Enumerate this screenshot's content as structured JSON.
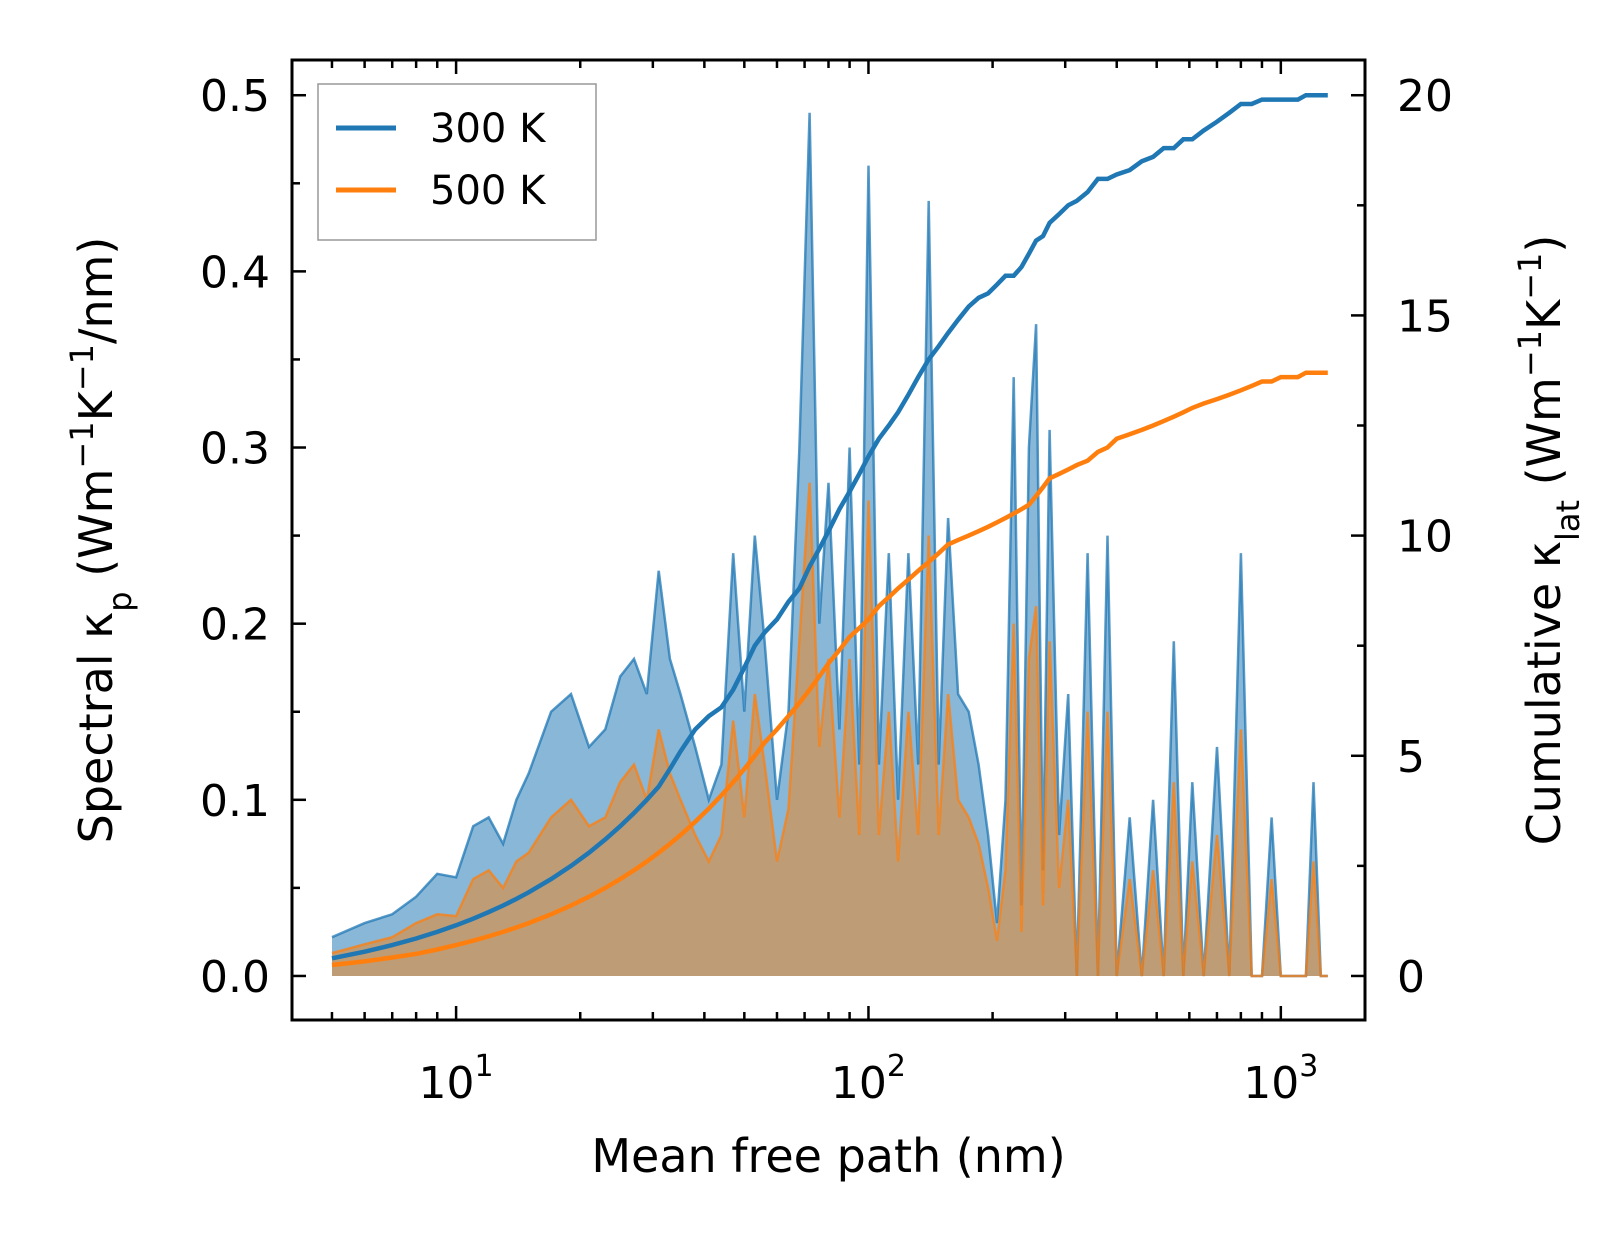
{
  "chart_data": {
    "type": "line",
    "title": "",
    "xlabel": "Mean free path (nm)",
    "ylabel_left": "Spectral κp (Wm−1K−1/nm)",
    "ylabel_right": "Cumulative κlat (Wm−1K−1)",
    "xscale": "log",
    "xlim": [
      4.0,
      1600
    ],
    "ylim_left": [
      -0.025,
      0.52
    ],
    "ylim_right": [
      -1.0,
      20.8
    ],
    "x_ticks": [
      "10^1",
      "10^2",
      "10^3"
    ],
    "y_left_ticks": [
      "0.0",
      "0.1",
      "0.2",
      "0.3",
      "0.4",
      "0.5"
    ],
    "y_right_ticks": [
      "0",
      "5",
      "10",
      "15",
      "20"
    ],
    "legend": {
      "position": "top-left",
      "entries": [
        "300 K",
        "500 K"
      ]
    },
    "colors": {
      "series_300": "#1f77b4",
      "series_500": "#ff7f0e",
      "fill_300": "#7bafd4",
      "fill_500": "#c49a6c"
    },
    "x": [
      5,
      6,
      7,
      8,
      9,
      10,
      11,
      12,
      13,
      14,
      15,
      17,
      19,
      21,
      23,
      25,
      27,
      29,
      31,
      33,
      35,
      38,
      41,
      44,
      47,
      50,
      53,
      56,
      60,
      64,
      68,
      72,
      76,
      80,
      85,
      90,
      95,
      100,
      106,
      112,
      118,
      125,
      132,
      140,
      148,
      156,
      165,
      175,
      185,
      195,
      205,
      215,
      225,
      235,
      245,
      255,
      265,
      275,
      290,
      305,
      320,
      340,
      360,
      380,
      400,
      430,
      460,
      490,
      520,
      550,
      580,
      610,
      650,
      700,
      750,
      800,
      850,
      900,
      950,
      1000,
      1050,
      1100,
      1150,
      1200,
      1250,
      1300
    ],
    "series": [
      {
        "name": "300 K",
        "spectral": [
          0.022,
          0.03,
          0.035,
          0.045,
          0.058,
          0.056,
          0.085,
          0.09,
          0.075,
          0.1,
          0.115,
          0.15,
          0.16,
          0.13,
          0.14,
          0.17,
          0.18,
          0.16,
          0.23,
          0.18,
          0.16,
          0.13,
          0.1,
          0.12,
          0.24,
          0.15,
          0.25,
          0.19,
          0.1,
          0.15,
          0.3,
          0.49,
          0.2,
          0.28,
          0.14,
          0.3,
          0.12,
          0.46,
          0.12,
          0.24,
          0.1,
          0.24,
          0.12,
          0.44,
          0.12,
          0.26,
          0.16,
          0.15,
          0.12,
          0.08,
          0.03,
          0.1,
          0.34,
          0.04,
          0.3,
          0.37,
          0.06,
          0.31,
          0.08,
          0.16,
          0.0,
          0.24,
          0.0,
          0.25,
          0.0,
          0.09,
          0.0,
          0.1,
          0.0,
          0.19,
          0.0,
          0.11,
          0.0,
          0.13,
          0.0,
          0.24,
          0.0,
          0.0,
          0.09,
          0.0,
          0.0,
          0.0,
          0.0,
          0.11,
          0.0,
          0.0
        ],
        "cumulative": [
          0.4,
          0.55,
          0.7,
          0.85,
          1.0,
          1.15,
          1.3,
          1.45,
          1.6,
          1.75,
          1.9,
          2.2,
          2.5,
          2.8,
          3.1,
          3.4,
          3.7,
          4.0,
          4.3,
          4.7,
          5.1,
          5.6,
          5.9,
          6.1,
          6.5,
          7.0,
          7.5,
          7.8,
          8.1,
          8.5,
          8.8,
          9.3,
          9.7,
          10.1,
          10.6,
          11.0,
          11.4,
          11.8,
          12.2,
          12.5,
          12.8,
          13.2,
          13.6,
          14.0,
          14.3,
          14.6,
          14.9,
          15.2,
          15.4,
          15.5,
          15.7,
          15.9,
          15.9,
          16.1,
          16.4,
          16.7,
          16.8,
          17.1,
          17.3,
          17.5,
          17.6,
          17.8,
          18.1,
          18.1,
          18.2,
          18.3,
          18.5,
          18.6,
          18.8,
          18.8,
          19.0,
          19.0,
          19.2,
          19.4,
          19.6,
          19.8,
          19.8,
          19.9,
          19.9,
          19.9,
          19.9,
          19.9,
          20.0,
          20.0,
          20.0,
          20.0
        ]
      },
      {
        "name": "500 K",
        "spectral": [
          0.013,
          0.018,
          0.022,
          0.03,
          0.035,
          0.034,
          0.055,
          0.06,
          0.05,
          0.065,
          0.07,
          0.09,
          0.1,
          0.085,
          0.09,
          0.11,
          0.12,
          0.1,
          0.14,
          0.115,
          0.1,
          0.08,
          0.065,
          0.08,
          0.145,
          0.09,
          0.16,
          0.12,
          0.065,
          0.095,
          0.19,
          0.28,
          0.13,
          0.18,
          0.09,
          0.18,
          0.08,
          0.27,
          0.08,
          0.15,
          0.065,
          0.15,
          0.08,
          0.25,
          0.08,
          0.16,
          0.1,
          0.09,
          0.075,
          0.05,
          0.02,
          0.06,
          0.2,
          0.025,
          0.18,
          0.21,
          0.04,
          0.19,
          0.05,
          0.1,
          0.0,
          0.15,
          0.0,
          0.15,
          0.0,
          0.055,
          0.0,
          0.06,
          0.0,
          0.11,
          0.0,
          0.065,
          0.0,
          0.08,
          0.0,
          0.14,
          0.0,
          0.0,
          0.055,
          0.0,
          0.0,
          0.0,
          0.0,
          0.065,
          0.0,
          0.0
        ],
        "cumulative": [
          0.25,
          0.33,
          0.42,
          0.5,
          0.6,
          0.7,
          0.8,
          0.9,
          1.0,
          1.1,
          1.2,
          1.4,
          1.6,
          1.8,
          2.0,
          2.2,
          2.4,
          2.6,
          2.8,
          3.0,
          3.2,
          3.5,
          3.8,
          4.1,
          4.4,
          4.7,
          5.0,
          5.3,
          5.6,
          5.9,
          6.2,
          6.5,
          6.8,
          7.1,
          7.4,
          7.7,
          7.9,
          8.1,
          8.4,
          8.6,
          8.8,
          9.0,
          9.2,
          9.4,
          9.6,
          9.8,
          9.9,
          10.0,
          10.1,
          10.2,
          10.3,
          10.4,
          10.5,
          10.6,
          10.7,
          10.9,
          11.1,
          11.3,
          11.4,
          11.5,
          11.6,
          11.7,
          11.9,
          12.0,
          12.2,
          12.3,
          12.4,
          12.5,
          12.6,
          12.7,
          12.8,
          12.9,
          13.0,
          13.1,
          13.2,
          13.3,
          13.4,
          13.5,
          13.5,
          13.6,
          13.6,
          13.6,
          13.7,
          13.7,
          13.7,
          13.7
        ]
      }
    ]
  }
}
